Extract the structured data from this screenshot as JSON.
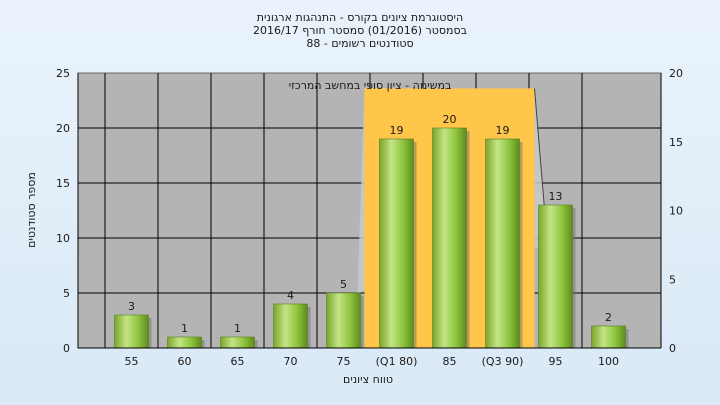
{
  "chart_data": {
    "type": "bar",
    "title": "היסטוגרמת ציונים בקורס - התנהגות ארגונית",
    "subtitle_lines": [
      "בסמסטר  (01/2016)  סמסטר חורף 2016/17",
      "סטודנטים רשומים - 88"
    ],
    "xlabel": "טווח ציונים",
    "ylabel": "מספר סטודנטים",
    "categories": [
      "55",
      "60",
      "65",
      "70",
      "75",
      "(Q1 80)",
      "85",
      "(Q3 90)",
      "95",
      "100"
    ],
    "values": [
      3,
      1,
      1,
      4,
      5,
      19,
      20,
      19,
      13,
      2
    ],
    "data_labels": [
      "3",
      "1",
      "1",
      "4",
      "5",
      "19",
      "20",
      "19",
      "13",
      "2"
    ],
    "ylim": [
      0,
      25
    ],
    "yticks": [
      "0",
      "5",
      "10",
      "15",
      "20",
      "25"
    ],
    "y2lim": [
      0,
      20
    ],
    "y2ticks": [
      "0",
      "5",
      "10",
      "15",
      "20"
    ],
    "annotation": "במשימה - ציון סופי במחשב המרכזי",
    "highlight_range": [
      "(Q1 80)",
      "(Q3 90)"
    ],
    "highlight_max": 23.6,
    "grid": true,
    "colors": {
      "bar": "#8cc43c",
      "highlight": "#ffc64a",
      "plot_bg": "#b4b4b4",
      "grid": "#000000"
    }
  }
}
